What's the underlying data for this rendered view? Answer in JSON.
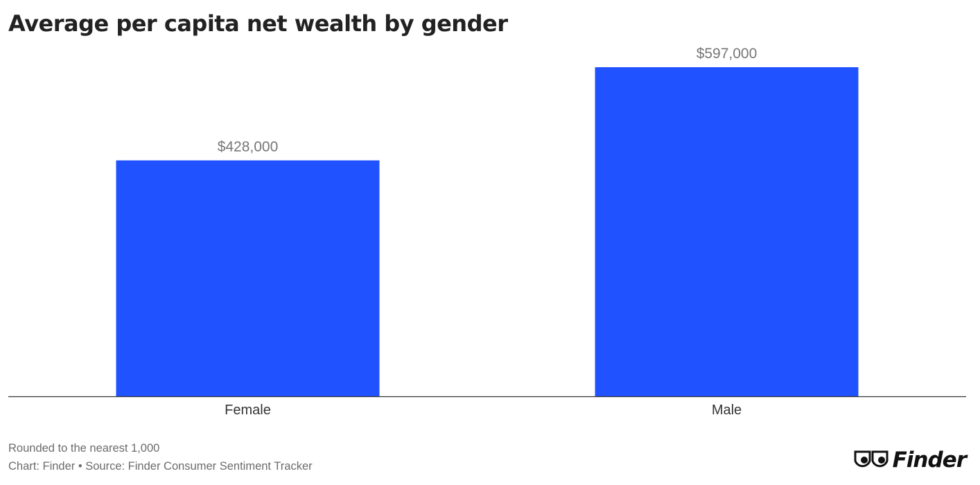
{
  "title": "Average per capita net wealth by gender",
  "footer": {
    "note": "Rounded to the nearest 1,000",
    "credit": "Chart: Finder • Source: Finder Consumer Sentiment Tracker"
  },
  "logo": {
    "text": "Finder",
    "icon": "eyes-icon"
  },
  "colors": {
    "bar": "#2052FF",
    "axis": "#333333",
    "value_label": "#777777",
    "tick_label": "#333333"
  },
  "chart_data": {
    "type": "bar",
    "title": "Average per capita net wealth by gender",
    "categories": [
      "Female",
      "Male"
    ],
    "values": [
      428000,
      597000
    ],
    "value_labels": [
      "$428,000",
      "$597,000"
    ],
    "xlabel": "",
    "ylabel": "",
    "ylim": [
      0,
      597000
    ],
    "grid": false,
    "legend": "none"
  }
}
